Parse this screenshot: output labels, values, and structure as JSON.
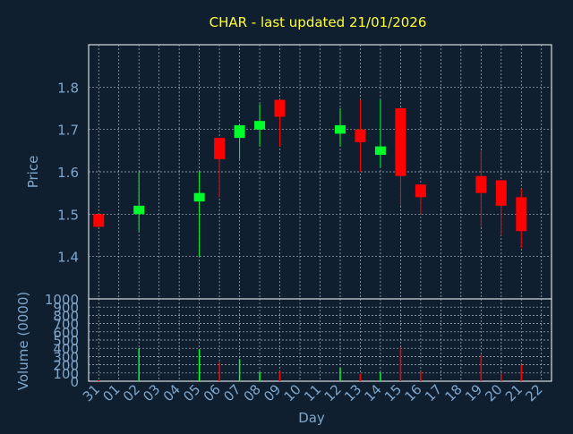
{
  "colors": {
    "background": "#0f1f2f",
    "panel": "#0f1f2f",
    "frame": "#ffffff",
    "grid": "#b0b8c0",
    "title": "#ffff33",
    "axis_text": "#7fa6cc",
    "up": "#00ff2a",
    "down": "#ff0000"
  },
  "chart_data": [
    {
      "type": "candlestick",
      "title": "CHAR - last updated 21/01/2026",
      "ylabel": "Price",
      "xlabel": "",
      "ylim": [
        1.3,
        1.9
      ],
      "yticks": [
        1.4,
        1.5,
        1.6,
        1.7,
        1.8
      ],
      "ytick_labels": [
        "1.4",
        "1.5",
        "1.6",
        "1.7",
        "1.8"
      ],
      "grid": true,
      "x": [
        "31",
        "01",
        "02",
        "03",
        "04",
        "05",
        "06",
        "07",
        "08",
        "09",
        "10",
        "11",
        "12",
        "13",
        "14",
        "15",
        "16",
        "17",
        "18",
        "19",
        "20",
        "21",
        "22"
      ],
      "candles": [
        {
          "day": "31",
          "open": 1.5,
          "close": 1.47,
          "high": 1.5,
          "low": 1.47
        },
        {
          "day": "02",
          "open": 1.5,
          "close": 1.52,
          "high": 1.6,
          "low": 1.46
        },
        {
          "day": "05",
          "open": 1.53,
          "close": 1.55,
          "high": 1.6,
          "low": 1.4
        },
        {
          "day": "06",
          "open": 1.68,
          "close": 1.63,
          "high": 1.68,
          "low": 1.54
        },
        {
          "day": "07",
          "open": 1.68,
          "close": 1.71,
          "high": 1.71,
          "low": 1.63
        },
        {
          "day": "08",
          "open": 1.7,
          "close": 1.72,
          "high": 1.76,
          "low": 1.66
        },
        {
          "day": "09",
          "open": 1.77,
          "close": 1.73,
          "high": 1.77,
          "low": 1.66
        },
        {
          "day": "12",
          "open": 1.69,
          "close": 1.71,
          "high": 1.75,
          "low": 1.66
        },
        {
          "day": "13",
          "open": 1.7,
          "close": 1.67,
          "high": 1.77,
          "low": 1.6
        },
        {
          "day": "14",
          "open": 1.64,
          "close": 1.66,
          "high": 1.77,
          "low": 1.61
        },
        {
          "day": "15",
          "open": 1.75,
          "close": 1.59,
          "high": 1.75,
          "low": 1.52
        },
        {
          "day": "16",
          "open": 1.57,
          "close": 1.54,
          "high": 1.57,
          "low": 1.5
        },
        {
          "day": "19",
          "open": 1.59,
          "close": 1.55,
          "high": 1.65,
          "low": 1.47
        },
        {
          "day": "20",
          "open": 1.58,
          "close": 1.52,
          "high": 1.58,
          "low": 1.45
        },
        {
          "day": "21",
          "open": 1.54,
          "close": 1.46,
          "high": 1.56,
          "low": 1.42
        }
      ]
    },
    {
      "type": "bar",
      "title": "",
      "ylabel": "Volume (0000)",
      "xlabel": "Day",
      "ylim": [
        0,
        1000
      ],
      "yticks": [
        0,
        100,
        200,
        300,
        400,
        500,
        600,
        700,
        800,
        900,
        1000
      ],
      "ytick_labels": [
        "0",
        "100",
        "200",
        "300",
        "400",
        "500",
        "600",
        "700",
        "800",
        "900",
        "1000"
      ],
      "grid": true,
      "x": [
        "31",
        "01",
        "02",
        "03",
        "04",
        "05",
        "06",
        "07",
        "08",
        "09",
        "10",
        "11",
        "12",
        "13",
        "14",
        "15",
        "16",
        "17",
        "18",
        "19",
        "20",
        "21",
        "22"
      ],
      "bars": [
        {
          "day": "31",
          "value": 10,
          "dir": "down"
        },
        {
          "day": "02",
          "value": 400,
          "dir": "up"
        },
        {
          "day": "05",
          "value": 390,
          "dir": "up"
        },
        {
          "day": "06",
          "value": 230,
          "dir": "down"
        },
        {
          "day": "07",
          "value": 270,
          "dir": "up"
        },
        {
          "day": "08",
          "value": 110,
          "dir": "up"
        },
        {
          "day": "09",
          "value": 120,
          "dir": "down"
        },
        {
          "day": "12",
          "value": 160,
          "dir": "up"
        },
        {
          "day": "13",
          "value": 90,
          "dir": "down"
        },
        {
          "day": "14",
          "value": 110,
          "dir": "up"
        },
        {
          "day": "15",
          "value": 410,
          "dir": "down"
        },
        {
          "day": "16",
          "value": 120,
          "dir": "down"
        },
        {
          "day": "19",
          "value": 320,
          "dir": "down"
        },
        {
          "day": "20",
          "value": 90,
          "dir": "down"
        },
        {
          "day": "21",
          "value": 200,
          "dir": "down"
        }
      ]
    }
  ]
}
